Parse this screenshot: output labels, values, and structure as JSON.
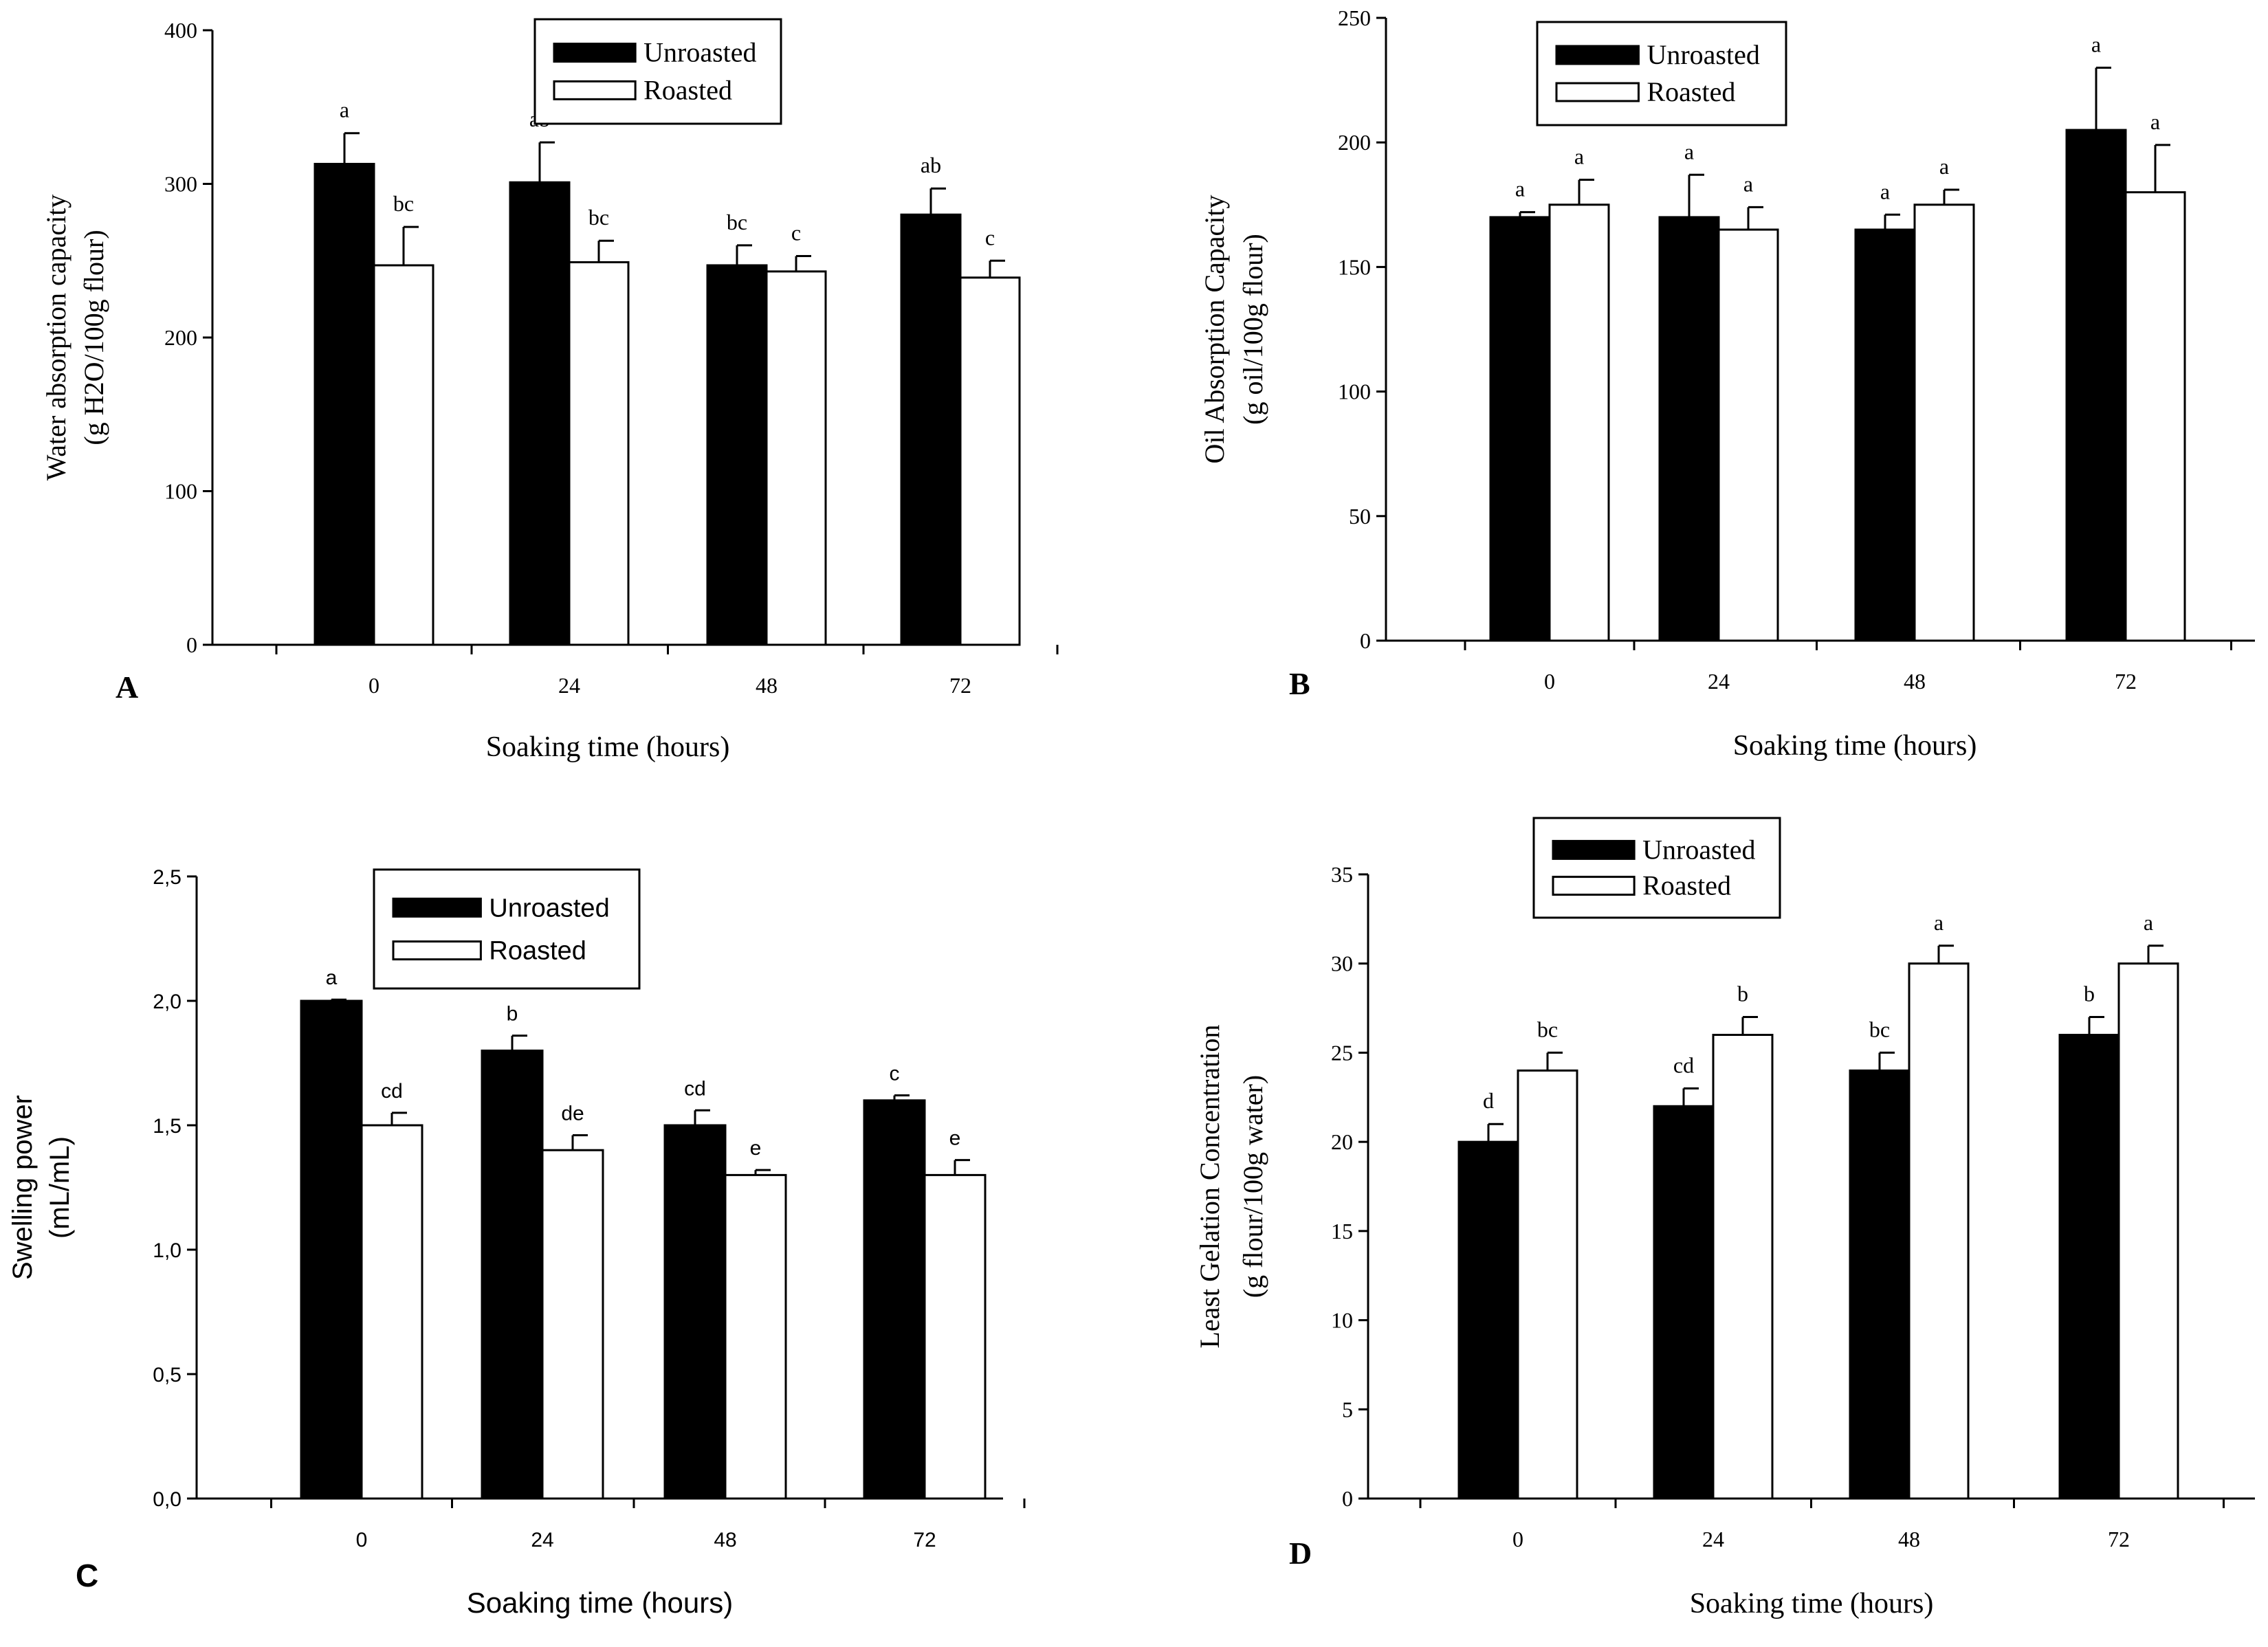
{
  "chart_data": [
    {
      "panel": "A",
      "type": "bar",
      "font": "serif",
      "legend": "top-center",
      "xlabel": "Soaking time (hours)",
      "ylabel": [
        "Water absorption capacity",
        "(g H2O/100g flour)"
      ],
      "categories": [
        "0",
        "24",
        "48",
        "72"
      ],
      "ylim": [
        0,
        400
      ],
      "yticks": [
        0,
        100,
        200,
        300,
        400
      ],
      "ytick_labels": [
        "0",
        "100",
        "200",
        "300",
        "400"
      ],
      "series": [
        {
          "name": "Unroasted",
          "style": "dark",
          "values": [
            313,
            301,
            247,
            280
          ],
          "errors": [
            20,
            26,
            13,
            17
          ],
          "letters": [
            "a",
            "ab",
            "bc",
            "ab"
          ]
        },
        {
          "name": "Roasted",
          "style": "light",
          "values": [
            247,
            249,
            243,
            239
          ],
          "errors": [
            25,
            14,
            10,
            11
          ],
          "letters": [
            "bc",
            "bc",
            "c",
            "c"
          ]
        }
      ]
    },
    {
      "panel": "B",
      "type": "bar",
      "font": "serif",
      "legend": "top-center",
      "xlabel": "Soaking time (hours)",
      "ylabel": [
        "Oil Absorption Capacity",
        "(g oil/100g flour)"
      ],
      "categories": [
        "0",
        "24",
        "48",
        "72"
      ],
      "ylim": [
        0,
        250
      ],
      "yticks": [
        0,
        50,
        100,
        150,
        200,
        250
      ],
      "ytick_labels": [
        "0",
        "50",
        "100",
        "150",
        "200",
        "250"
      ],
      "series": [
        {
          "name": "Unroasted",
          "style": "dark",
          "values": [
            170,
            170,
            165,
            205
          ],
          "errors": [
            2,
            17,
            6,
            25
          ],
          "letters": [
            "a",
            "a",
            "a",
            "a"
          ]
        },
        {
          "name": "Roasted",
          "style": "light",
          "values": [
            175,
            165,
            175,
            180
          ],
          "errors": [
            10,
            9,
            6,
            19
          ],
          "letters": [
            "a",
            "a",
            "a",
            "a"
          ]
        }
      ]
    },
    {
      "panel": "C",
      "type": "bar",
      "font": "sans",
      "legend": "top-center",
      "xlabel": "Soaking time (hours)",
      "ylabel": [
        "Swelling power",
        "(mL/mL)"
      ],
      "categories": [
        "0",
        "24",
        "48",
        "72"
      ],
      "ylim": [
        0,
        2.5
      ],
      "yticks": [
        0,
        0.5,
        1.0,
        1.5,
        2.0,
        2.5
      ],
      "ytick_labels": [
        "0,0",
        "0,5",
        "1,0",
        "1,5",
        "2,0",
        "2,5"
      ],
      "series": [
        {
          "name": "Unroasted",
          "style": "dark",
          "values": [
            2.0,
            1.8,
            1.5,
            1.6
          ],
          "errors": [
            0.005,
            0.06,
            0.06,
            0.02
          ],
          "letters": [
            "a",
            "b",
            "cd",
            "c"
          ]
        },
        {
          "name": "Roasted",
          "style": "light",
          "values": [
            1.5,
            1.4,
            1.3,
            1.3
          ],
          "errors": [
            0.05,
            0.06,
            0.02,
            0.06
          ],
          "letters": [
            "cd",
            "de",
            "e",
            "e"
          ]
        }
      ]
    },
    {
      "panel": "D",
      "type": "bar",
      "font": "serif",
      "legend": "top-center",
      "xlabel": "Soaking time (hours)",
      "ylabel": [
        "Least Gelation Concentration",
        "(g flour/100g water)"
      ],
      "categories": [
        "0",
        "24",
        "48",
        "72"
      ],
      "ylim": [
        0,
        35
      ],
      "yticks": [
        0,
        5,
        10,
        15,
        20,
        25,
        30,
        35
      ],
      "ytick_labels": [
        "0",
        "5",
        "10",
        "15",
        "20",
        "25",
        "30",
        "35"
      ],
      "series": [
        {
          "name": "Unroasted",
          "style": "dark",
          "values": [
            20,
            22,
            24,
            26
          ],
          "errors": [
            1,
            1,
            1,
            1
          ],
          "letters": [
            "d",
            "cd",
            "bc",
            "b"
          ]
        },
        {
          "name": "Roasted",
          "style": "light",
          "values": [
            24,
            26,
            30,
            30
          ],
          "errors": [
            1,
            1,
            1,
            1
          ],
          "letters": [
            "bc",
            "b",
            "a",
            "a"
          ]
        }
      ]
    }
  ]
}
